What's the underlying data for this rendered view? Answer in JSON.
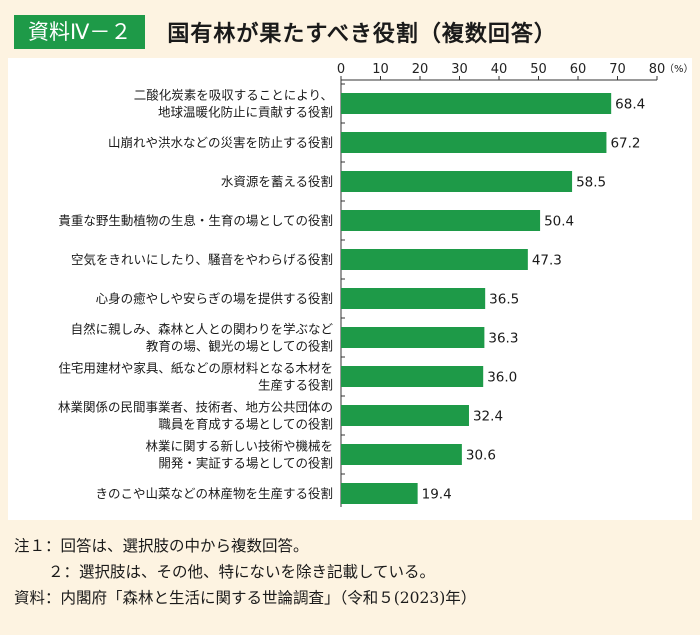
{
  "header": {
    "badge": "資料Ⅳ－２",
    "title": "国有林が果たすべき役割（複数回答）"
  },
  "chart_data": {
    "type": "bar",
    "orientation": "horizontal",
    "unit": "（%）",
    "xlim": [
      0,
      80
    ],
    "ticks": [
      "0",
      "10",
      "20",
      "30",
      "40",
      "50",
      "60",
      "70",
      "80"
    ],
    "bar_color": "#1e9a48",
    "categories": [
      [
        "二酸化炭素を吸収することにより、",
        "地球温暖化防止に貢献する役割"
      ],
      [
        "山崩れや洪水などの災害を防止する役割"
      ],
      [
        "水資源を蓄える役割"
      ],
      [
        "貴重な野生動植物の生息・生育の場としての役割"
      ],
      [
        "空気をきれいにしたり、騒音をやわらげる役割"
      ],
      [
        "心身の癒やしや安らぎの場を提供する役割"
      ],
      [
        "自然に親しみ、森林と人との関わりを学ぶなど",
        "教育の場、観光の場としての役割"
      ],
      [
        "住宅用建材や家具、紙などの原材料となる木材を",
        "生産する役割"
      ],
      [
        "林業関係の民間事業者、技術者、地方公共団体の",
        "職員を育成する場としての役割"
      ],
      [
        "林業に関する新しい技術や機械を",
        "開発・実証する場としての役割"
      ],
      [
        "きのこや山菜などの林産物を生産する役割"
      ]
    ],
    "values": [
      68.4,
      67.2,
      58.5,
      50.4,
      47.3,
      36.5,
      36.3,
      36.0,
      32.4,
      30.6,
      19.4
    ],
    "value_labels": [
      "68.4",
      "67.2",
      "58.5",
      "50.4",
      "47.3",
      "36.5",
      "36.3",
      "36.0",
      "32.4",
      "30.6",
      "19.4"
    ]
  },
  "notes": {
    "note1": "注１：回答は、選択肢の中から複数回答。",
    "note2": "２：選択肢は、その他、特にないを除き記載している。",
    "source": "資料：内閣府「森林と生活に関する世論調査」（令和５(2023)年）"
  }
}
